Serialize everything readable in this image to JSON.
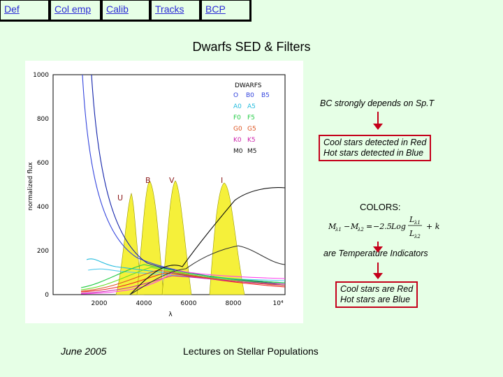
{
  "nav": [
    {
      "label": "Def"
    },
    {
      "label": "Col emp"
    },
    {
      "label": "Calib"
    },
    {
      "label": "Tracks"
    },
    {
      "label": "BCP"
    }
  ],
  "title": "Dwarfs SED  &  Filters",
  "figure": {
    "ylabel": "normalized flux",
    "xlabel": "λ",
    "yticks": [
      "0",
      "200",
      "400",
      "600",
      "800",
      "1000"
    ],
    "xticks": [
      "2000",
      "4000",
      "6000",
      "8000",
      "10⁴"
    ],
    "filters": [
      "U",
      "B",
      "V",
      "I"
    ],
    "legend_title": "DWARFS",
    "legend_rows": [
      {
        "a": "O",
        "b": "B0",
        "c": "B5",
        "color": "#3344dd"
      },
      {
        "a": "A0",
        "b": "A5",
        "c": "",
        "color": "#22bbdd"
      },
      {
        "a": "F0",
        "b": "F5",
        "c": "",
        "color": "#22cc44"
      },
      {
        "a": "G0",
        "b": "G5",
        "c": "",
        "color": "#dd5522"
      },
      {
        "a": "K0",
        "b": "K5",
        "c": "",
        "color": "#cc22aa"
      },
      {
        "a": "M0",
        "b": "M5",
        "c": "",
        "color": "#111111"
      }
    ]
  },
  "notes": {
    "bc_depends": "BC strongly depends on Sp.T",
    "detect_line1": "Cool stars detected in Red",
    "detect_line2": "Hot stars detected in Blue",
    "colors_label": "COLORS:",
    "formula": "M_λ1 − M_λ2 = −2.5Log (L_λ1 / L_λ2) + k",
    "temp_indicators": "are Temperature Indicators",
    "colors_line1": "Cool stars are Red",
    "colors_line2": "Hot stars are Blue"
  },
  "footer": {
    "date": "June 2005",
    "course": "Lectures on Stellar Populations"
  }
}
